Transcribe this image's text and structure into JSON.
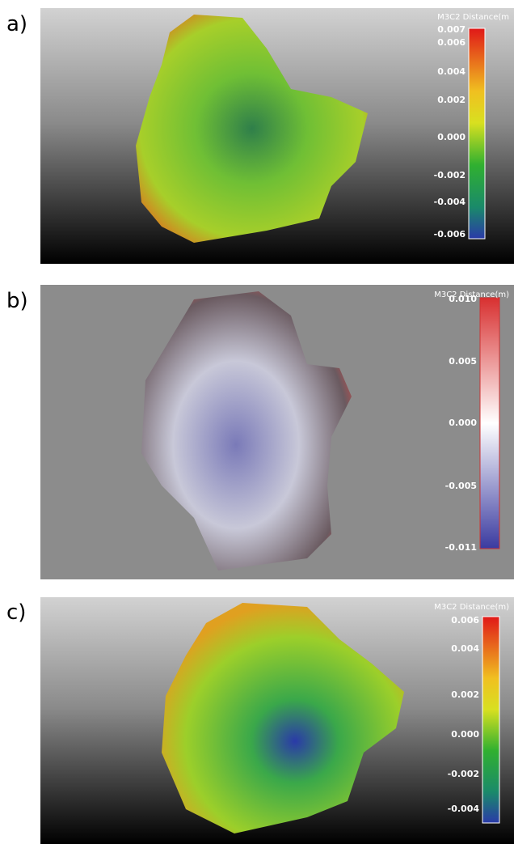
{
  "panels": [
    {
      "label": "a)",
      "scale": {
        "title": "M3C2 Distance(m",
        "ticks": [
          "0.007",
          "0.006",
          "0.004",
          "0.002",
          "0.000",
          "-0.002",
          "-0.004",
          "-0.006"
        ]
      }
    },
    {
      "label": "b)",
      "scale": {
        "title": "M3C2 Distance(m)",
        "ticks": [
          "0.010",
          "0.005",
          "0.000",
          "-0.005",
          "-0.011"
        ]
      }
    },
    {
      "label": "c)",
      "scale": {
        "title": "M3C2 Distance(m)",
        "ticks": [
          "0.006",
          "0.004",
          "0.002",
          "0.000",
          "-0.002",
          "-0.004"
        ]
      }
    }
  ]
}
